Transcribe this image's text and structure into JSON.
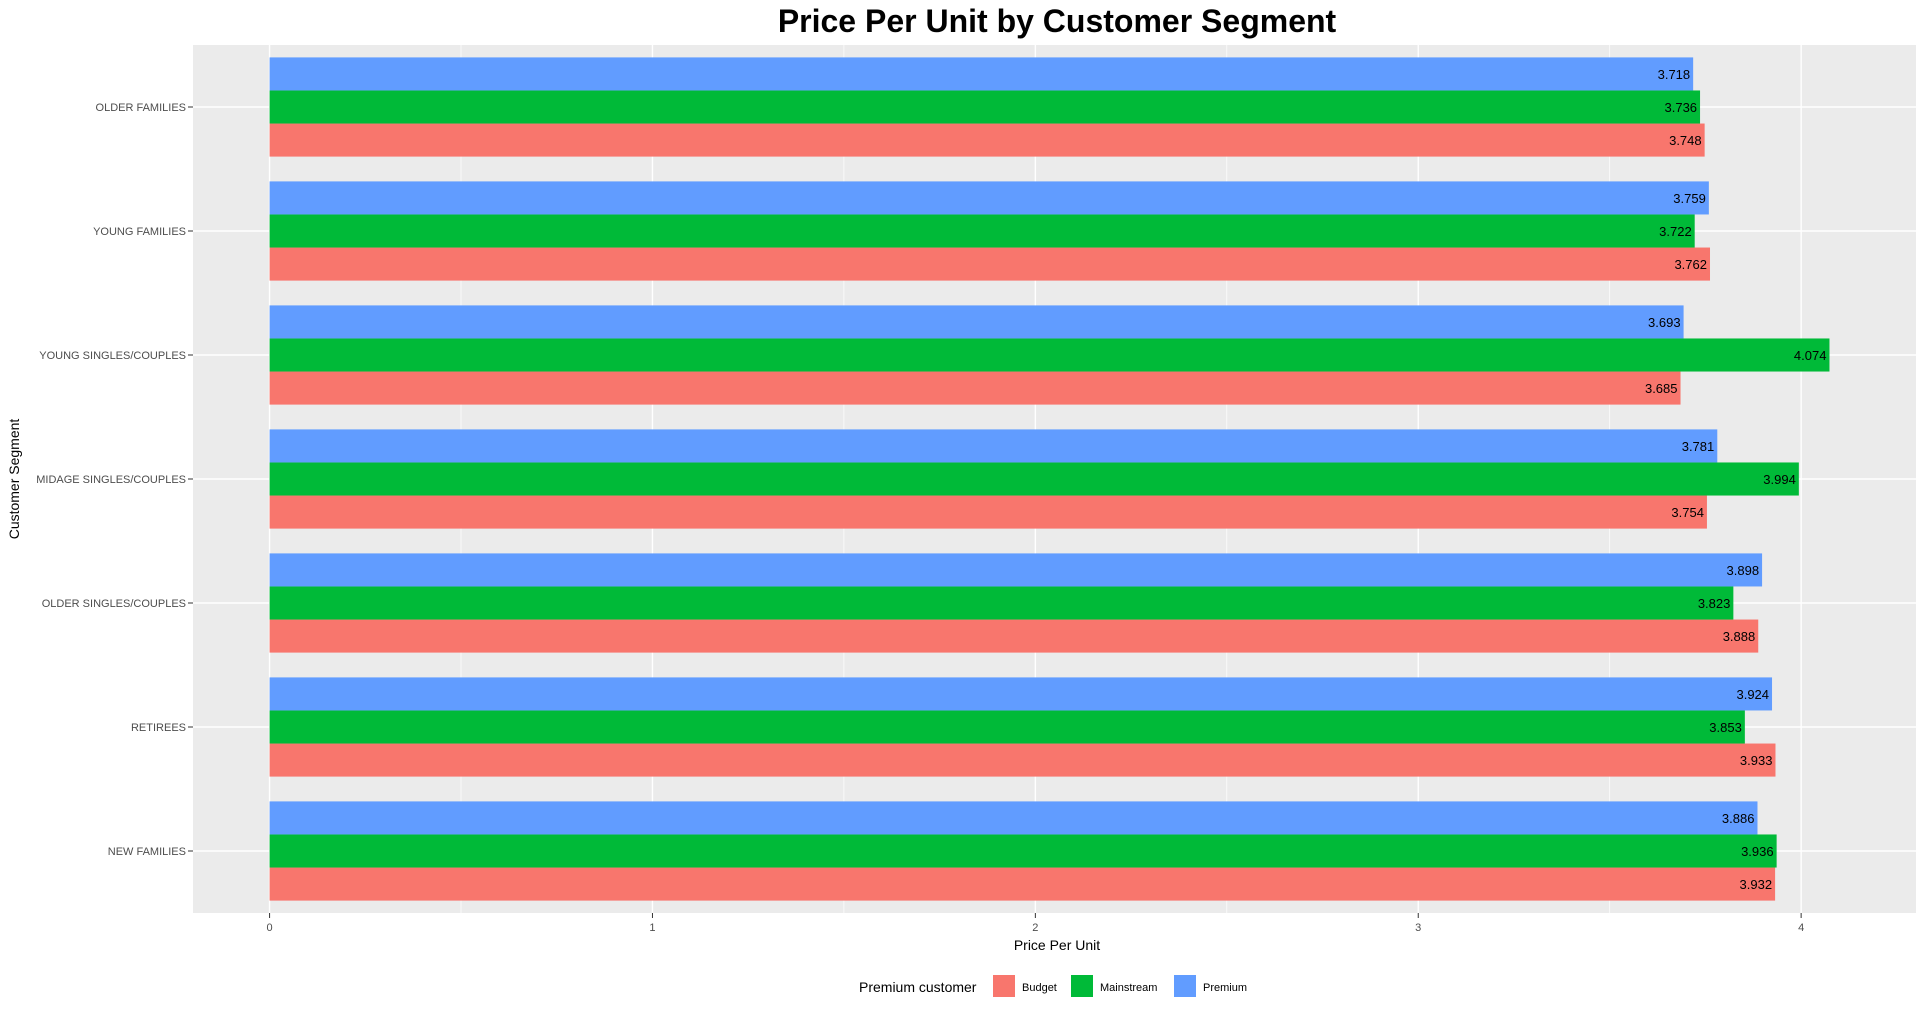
{
  "chart_data": {
    "type": "bar",
    "orientation": "horizontal",
    "title": "Price Per Unit by Customer Segment",
    "xlabel": "Price Per Unit",
    "ylabel": "Customer Segment",
    "xlim": [
      -0.2,
      4.3
    ],
    "x_ticks": [
      0,
      1,
      2,
      3,
      4
    ],
    "grid": true,
    "categories": [
      "OLDER FAMILIES",
      "YOUNG FAMILIES",
      "YOUNG SINGLES/COUPLES",
      "MIDAGE SINGLES/COUPLES",
      "OLDER SINGLES/COUPLES",
      "RETIREES",
      "NEW FAMILIES"
    ],
    "series": [
      {
        "name": "Budget",
        "color": "#F8766D",
        "values": [
          3.748,
          3.762,
          3.685,
          3.754,
          3.888,
          3.933,
          3.932
        ]
      },
      {
        "name": "Mainstream",
        "color": "#00BA38",
        "values": [
          3.736,
          3.722,
          4.074,
          3.994,
          3.823,
          3.853,
          3.936
        ]
      },
      {
        "name": "Premium",
        "color": "#619CFF",
        "values": [
          3.718,
          3.759,
          3.693,
          3.781,
          3.898,
          3.924,
          3.886
        ]
      }
    ],
    "legend": {
      "title": "Premium customer",
      "position": "bottom"
    }
  }
}
